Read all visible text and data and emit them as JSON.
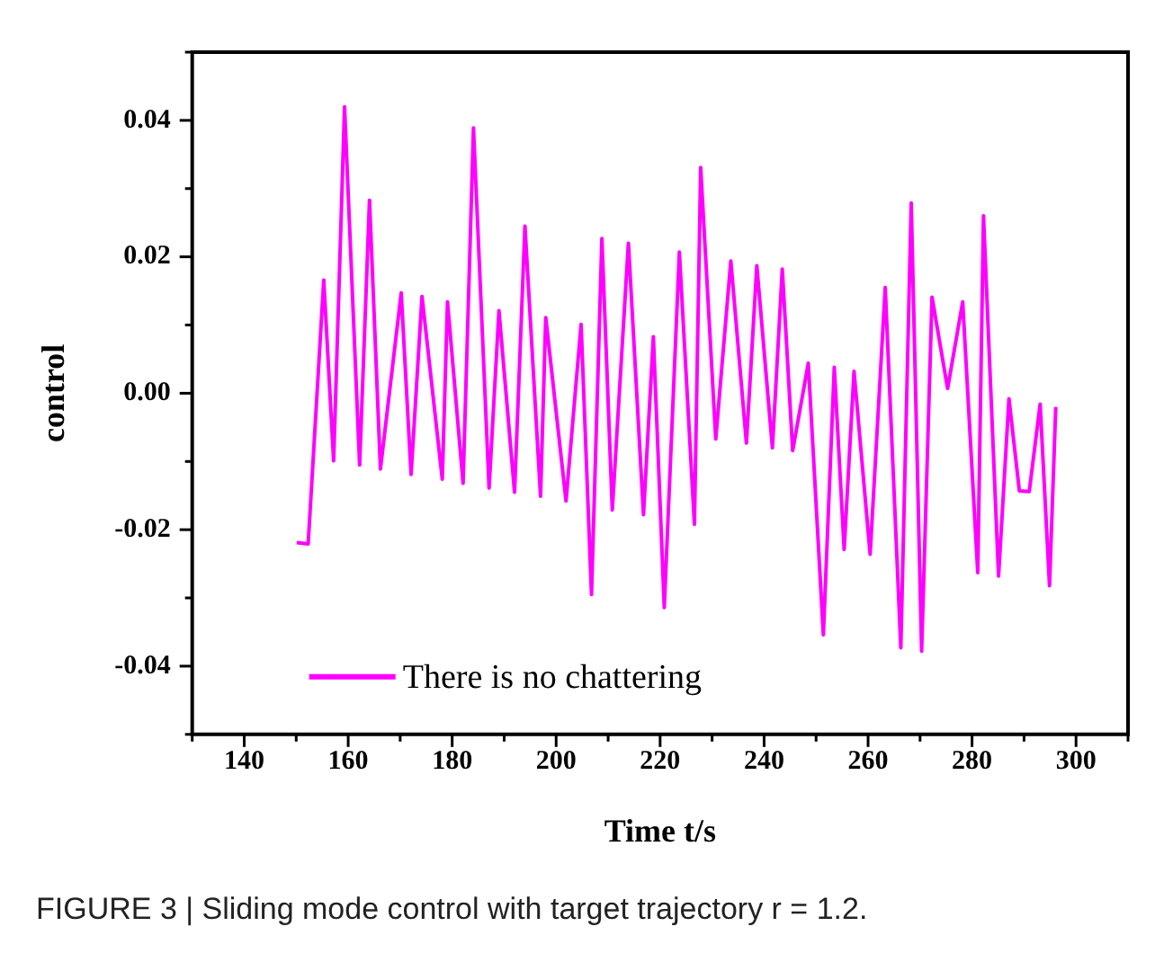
{
  "chart_data": {
    "type": "line",
    "xlabel": "Time t/s",
    "ylabel": "control",
    "annotations": [
      "FIGURE 3 | Sliding mode control with target trajectory r = 1.2."
    ],
    "xlim": [
      130,
      310
    ],
    "ylim": [
      -0.05,
      0.05
    ],
    "xticks": [
      {
        "value": 130,
        "label": null
      },
      140,
      {
        "value": 150,
        "label": null
      },
      160,
      {
        "value": 170,
        "label": null
      },
      180,
      {
        "value": 190,
        "label": null
      },
      200,
      {
        "value": 210,
        "label": null
      },
      220,
      {
        "value": 230,
        "label": null
      },
      240,
      {
        "value": 250,
        "label": null
      },
      260,
      {
        "value": 270,
        "label": null
      },
      280,
      {
        "value": 290,
        "label": null
      },
      300,
      {
        "value": 310,
        "label": null
      }
    ],
    "yticks": [
      {
        "value": -0.05,
        "label": null
      },
      -0.04,
      {
        "value": -0.03,
        "label": null
      },
      -0.02,
      {
        "value": -0.01,
        "label": null
      },
      {
        "value": 0,
        "label": "0.00"
      },
      {
        "value": 0.01,
        "label": null
      },
      0.02,
      {
        "value": 0.03,
        "label": null
      },
      0.04,
      {
        "value": 0.05,
        "label": null
      }
    ],
    "grid": false,
    "legend": "bottom left",
    "marker": "none",
    "line_style": "solid",
    "series": [
      {
        "name": "There is no chattering",
        "color": "#ff00ff",
        "x": [
          150.1,
          152.3,
          155.3,
          157.2,
          159.3,
          162.2,
          164.1,
          166.2,
          170.2,
          172.1,
          174.2,
          178.1,
          179.1,
          182.1,
          184.1,
          187.1,
          189.0,
          192.0,
          194.0,
          197.0,
          198.0,
          201.9,
          204.8,
          206.8,
          208.8,
          210.8,
          213.9,
          216.8,
          218.7,
          220.8,
          223.7,
          226.6,
          227.8,
          230.7,
          233.6,
          236.6,
          238.6,
          241.6,
          243.5,
          245.5,
          248.5,
          251.4,
          253.5,
          255.4,
          257.3,
          260.4,
          263.3,
          266.3,
          268.3,
          270.3,
          272.3,
          275.3,
          278.2,
          281.1,
          282.2,
          285.1,
          287.1,
          289.1,
          291.0,
          293.1,
          294.9,
          296.1
        ],
        "values": [
          -0.0219,
          -0.0221,
          0.0166,
          -0.0099,
          0.042,
          -0.0105,
          0.0283,
          -0.0111,
          0.0147,
          -0.0119,
          0.0142,
          -0.0126,
          0.0134,
          -0.0132,
          0.0389,
          -0.0139,
          0.0121,
          -0.0145,
          0.0245,
          -0.0151,
          0.0111,
          -0.0158,
          0.0101,
          -0.0295,
          0.0227,
          -0.0171,
          0.022,
          -0.0178,
          0.0083,
          -0.0314,
          0.0207,
          -0.0192,
          0.0331,
          -0.0067,
          0.0194,
          -0.0073,
          0.0187,
          -0.008,
          0.0182,
          -0.0084,
          0.0044,
          -0.0354,
          0.0038,
          -0.0229,
          0.0032,
          -0.0236,
          0.0155,
          -0.0373,
          0.0279,
          -0.0378,
          0.0141,
          0.0007,
          0.0134,
          -0.0263,
          0.026,
          -0.0268,
          -0.0008,
          -0.0143,
          -0.0144,
          -0.0016,
          -0.0282,
          -0.002
        ]
      }
    ]
  }
}
